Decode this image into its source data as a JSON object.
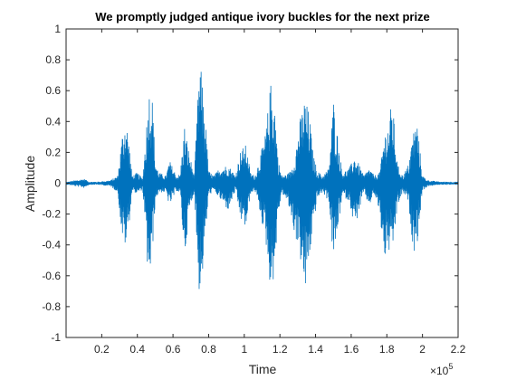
{
  "chart_data": {
    "type": "line",
    "title": "We promptly judged antique ivory buckles for the next prize",
    "xlabel": "Time",
    "ylabel": "Amplitude",
    "x_exponent_label": "×10",
    "x_exponent_power": "5",
    "xlim": [
      0,
      220000
    ],
    "ylim": [
      -1,
      1
    ],
    "xticks": [
      20000,
      40000,
      60000,
      80000,
      100000,
      120000,
      140000,
      160000,
      180000,
      200000,
      220000
    ],
    "xtick_labels": [
      "0.2",
      "0.4",
      "0.6",
      "0.8",
      "1",
      "1.2",
      "1.4",
      "1.6",
      "1.8",
      "2",
      "2.2"
    ],
    "yticks": [
      -1,
      -0.8,
      -0.6,
      -0.4,
      -0.2,
      0,
      0.2,
      0.4,
      0.6,
      0.8,
      1
    ],
    "ytick_labels": [
      "-1",
      "-0.8",
      "-0.6",
      "-0.4",
      "-0.2",
      "0",
      "0.2",
      "0.4",
      "0.6",
      "0.8",
      "1"
    ],
    "grid": false,
    "line_color": "#0072BD",
    "series": [
      {
        "x": [
          0,
          1000,
          10000,
          13000,
          18000,
          25000,
          29000,
          31500,
          33500,
          35500,
          37000,
          40000,
          43000,
          45500,
          47000,
          48500,
          50000,
          52000,
          56000,
          58000,
          62000,
          64000,
          66500,
          69000,
          72000,
          74500,
          76000,
          78000,
          80000,
          83000,
          86000,
          91000,
          95000,
          98000,
          101000,
          103500,
          106000,
          109000,
          112000,
          115000,
          117000,
          119000,
          121000,
          124000,
          126000,
          128000,
          131000,
          134000,
          136500,
          138500,
          141000,
          144000,
          147500,
          150000,
          152000,
          155000,
          159000,
          162000,
          164500,
          167000,
          170000,
          173000,
          176000,
          178500,
          181000,
          183000,
          186000,
          189000,
          192000,
          195000,
          197000,
          200000,
          203000,
          210000,
          220000
        ],
        "env_pos": [
          0.01,
          0.01,
          0.03,
          0.01,
          0.01,
          0.02,
          0.05,
          0.32,
          0.44,
          0.25,
          0.05,
          0.07,
          0.03,
          0.45,
          0.66,
          0.55,
          0.15,
          0.07,
          0.05,
          0.15,
          0.05,
          0.06,
          0.38,
          0.2,
          0.05,
          0.74,
          0.73,
          0.45,
          0.08,
          0.05,
          0.1,
          0.12,
          0.05,
          0.22,
          0.25,
          0.07,
          0.05,
          0.18,
          0.33,
          0.67,
          0.55,
          0.15,
          0.05,
          0.06,
          0.08,
          0.15,
          0.4,
          0.56,
          0.45,
          0.2,
          0.08,
          0.05,
          0.1,
          0.55,
          0.35,
          0.07,
          0.1,
          0.18,
          0.12,
          0.05,
          0.1,
          0.05,
          0.07,
          0.32,
          0.4,
          0.55,
          0.12,
          0.05,
          0.12,
          0.35,
          0.4,
          0.05,
          0.02,
          0.01,
          0.01
        ],
        "env_neg": [
          0.01,
          0.01,
          0.03,
          0.01,
          0.01,
          0.02,
          0.06,
          0.36,
          0.42,
          0.25,
          0.05,
          0.07,
          0.04,
          0.53,
          0.65,
          0.45,
          0.12,
          0.06,
          0.06,
          0.15,
          0.05,
          0.07,
          0.49,
          0.2,
          0.05,
          0.71,
          0.68,
          0.38,
          0.08,
          0.05,
          0.1,
          0.18,
          0.05,
          0.24,
          0.3,
          0.07,
          0.05,
          0.2,
          0.38,
          0.72,
          0.58,
          0.22,
          0.06,
          0.12,
          0.2,
          0.32,
          0.45,
          0.74,
          0.5,
          0.3,
          0.1,
          0.06,
          0.12,
          0.52,
          0.35,
          0.08,
          0.12,
          0.3,
          0.18,
          0.06,
          0.15,
          0.07,
          0.2,
          0.5,
          0.45,
          0.49,
          0.15,
          0.06,
          0.12,
          0.45,
          0.4,
          0.05,
          0.02,
          0.01,
          0.01
        ]
      }
    ]
  }
}
